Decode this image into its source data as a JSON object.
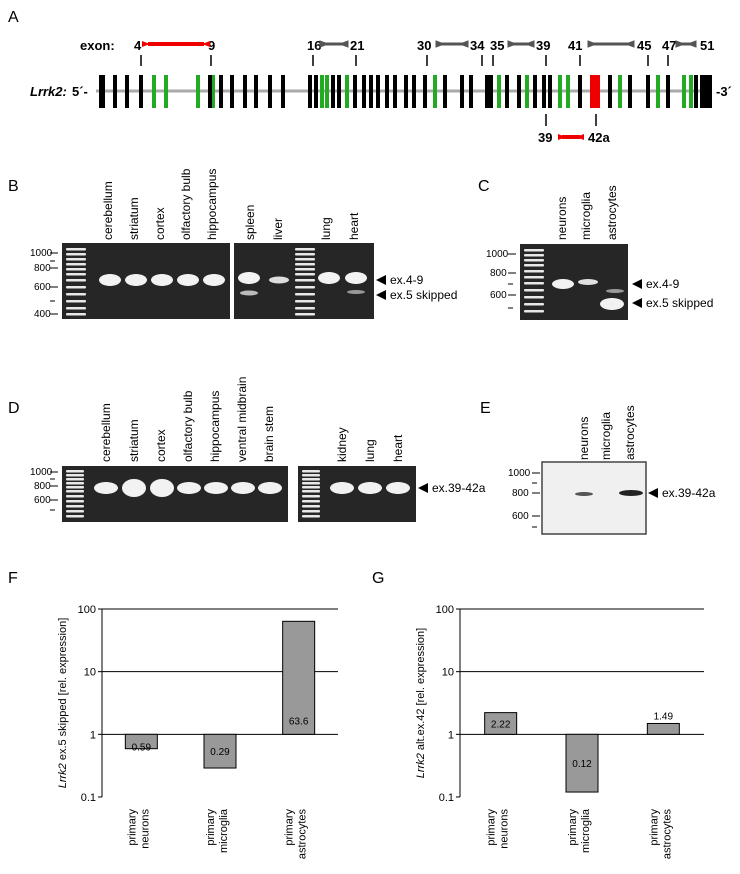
{
  "panels": {
    "A": "A",
    "B": "B",
    "C": "C",
    "D": "D",
    "E": "E",
    "F": "F",
    "G": "G"
  },
  "gene": {
    "exon_label": "exon:",
    "name": "Lrrk2:",
    "five_prime": "5´-",
    "three_prime": "-3´",
    "top_numbers": [
      "4",
      "9",
      "16",
      "21",
      "30",
      "34",
      "35",
      "39",
      "41",
      "45",
      "47",
      "51"
    ],
    "bottom_numbers": [
      "39",
      "42a"
    ]
  },
  "gelB": {
    "lanes": [
      "cerebellum",
      "striatum",
      "cortex",
      "olfactory bulb",
      "hippocampus",
      "spleen",
      "liver",
      "lung",
      "heart"
    ],
    "ladder": [
      "1000",
      "800",
      "600",
      "400"
    ],
    "bands": [
      "ex.4-9",
      "ex.5 skipped"
    ]
  },
  "gelC": {
    "lanes": [
      "neurons",
      "microglia",
      "astrocytes"
    ],
    "ladder": [
      "1000",
      "800",
      "600"
    ],
    "bands": [
      "ex.4-9",
      "ex.5 skipped"
    ]
  },
  "gelD": {
    "lanes": [
      "cerebellum",
      "striatum",
      "cortex",
      "olfactory bulb",
      "hippocampus",
      "ventral midbrain",
      "brain stem",
      "kidney",
      "lung",
      "heart"
    ],
    "ladder": [
      "1000",
      "800",
      "600"
    ],
    "bands": [
      "ex.39-42a"
    ]
  },
  "gelE": {
    "lanes": [
      "neurons",
      "microglia",
      "astrocytes"
    ],
    "ladder": [
      "1000",
      "800",
      "600"
    ],
    "bands": [
      "ex.39-42a"
    ]
  },
  "chart_data": [
    {
      "type": "bar",
      "ylabel_italic": "Lrrk2",
      "ylabel": " ex.5 skipped [rel. expression]",
      "yscale": "log",
      "ylim": [
        0.1,
        100
      ],
      "yticks": [
        "100",
        "10",
        "1",
        "0.1"
      ],
      "categories": [
        [
          "primary",
          "neurons"
        ],
        [
          "primary",
          "microglia"
        ],
        [
          "primary",
          "astrocytes"
        ]
      ],
      "values": [
        0.59,
        0.29,
        63.6
      ],
      "labels": [
        "0.59",
        "0.29",
        "63.6"
      ],
      "bar_color": "#999999"
    },
    {
      "type": "bar",
      "ylabel_italic": "Lrrk2",
      "ylabel": " alt.ex.42 [rel. expression]",
      "yscale": "log",
      "ylim": [
        0.1,
        100
      ],
      "yticks": [
        "100",
        "10",
        "1",
        "0.1"
      ],
      "categories": [
        [
          "primary",
          "neurons"
        ],
        [
          "primary",
          "microglia"
        ],
        [
          "primary",
          "astrocytes"
        ]
      ],
      "values": [
        2.22,
        0.12,
        1.49
      ],
      "labels": [
        "2.22",
        "0.12",
        "1.49"
      ],
      "bar_color": "#999999"
    }
  ]
}
